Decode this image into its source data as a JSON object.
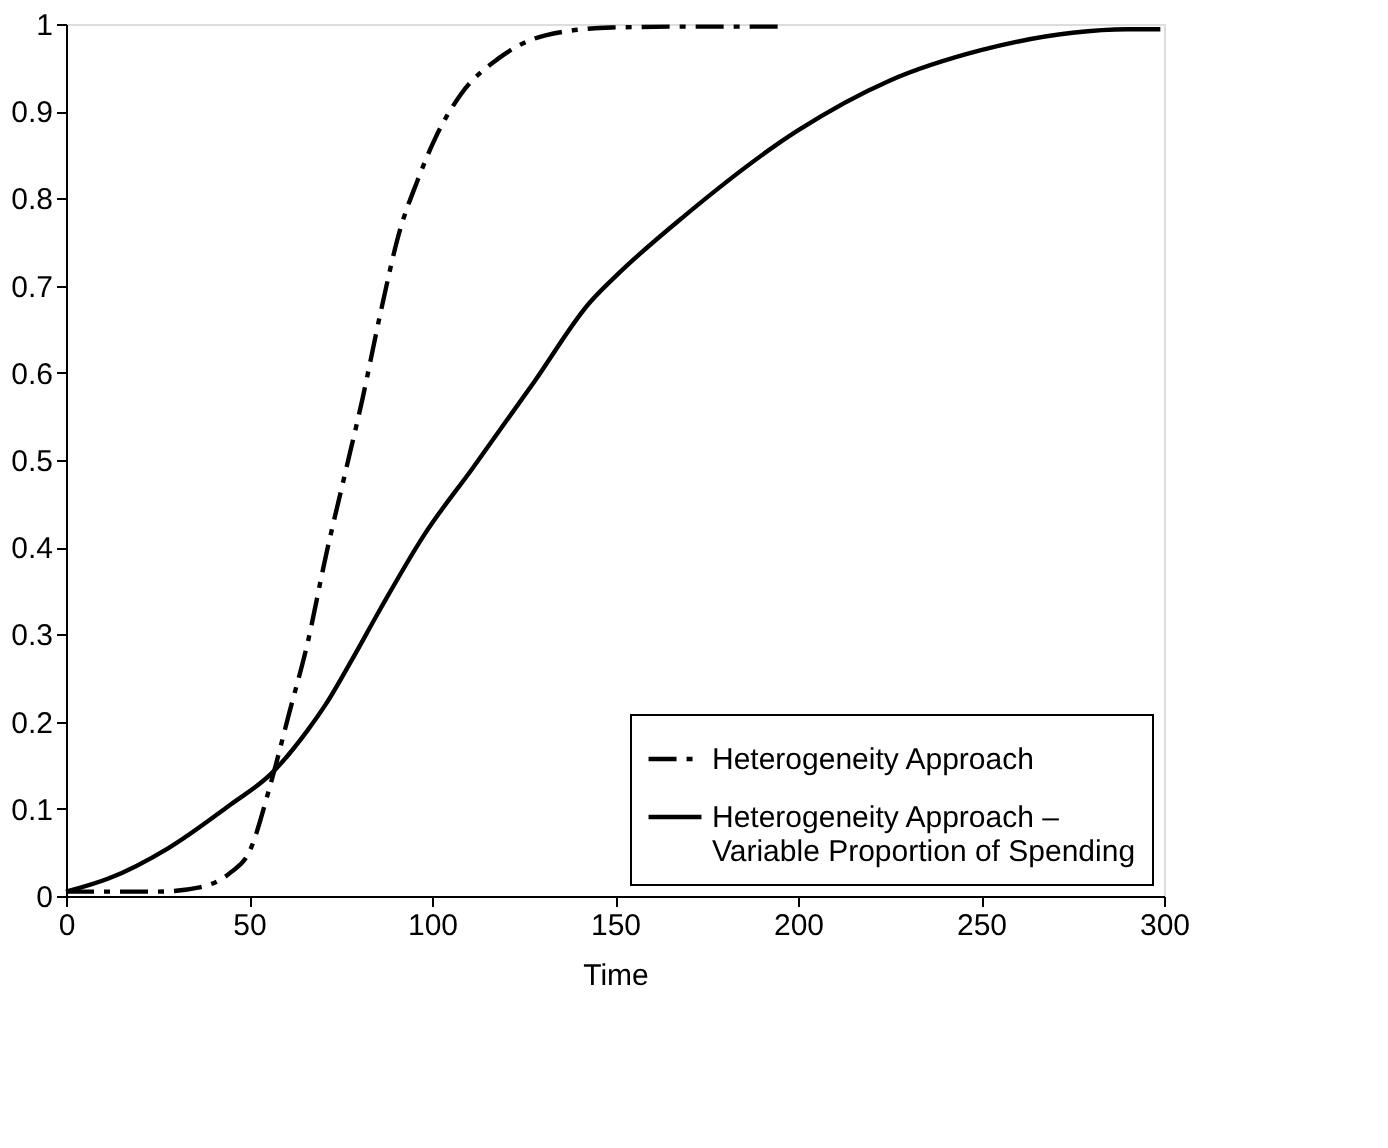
{
  "chart_data": {
    "type": "line",
    "xlabel": "Time",
    "xlim": [
      0,
      300
    ],
    "ylim": [
      0,
      1
    ],
    "xticks": [
      0,
      50,
      100,
      150,
      200,
      250,
      300
    ],
    "yticks": [
      0,
      0.1,
      0.2,
      0.3,
      0.4,
      0.5,
      0.6,
      0.7,
      0.8,
      0.9,
      1
    ],
    "grid": false,
    "legend": "bottom right",
    "marker": "none",
    "series": [
      {
        "name": "Heterogeneity Approach",
        "color": "#000000",
        "line_style": "dashdot",
        "x": [
          0,
          25,
          36.5,
          45,
          50,
          56,
          61,
          66,
          71,
          76,
          81,
          86,
          91,
          96,
          101,
          108,
          118,
          131,
          149,
          170,
          195
        ],
        "values": [
          0.005,
          0.005,
          0.01,
          0.027,
          0.05,
          0.13,
          0.21,
          0.29,
          0.39,
          0.48,
          0.57,
          0.67,
          0.76,
          0.82,
          0.87,
          0.92,
          0.96,
          0.987,
          0.996,
          0.997,
          0.997
        ]
      },
      {
        "name": "Heterogeneity Approach – Variable Proportion of Spending",
        "color": "#000000",
        "line_style": "solid",
        "x": [
          0,
          11.6,
          28,
          45,
          56,
          66,
          71,
          78,
          86,
          98,
          111,
          128,
          143,
          150,
          169,
          200,
          225,
          250,
          275,
          290,
          299
        ],
        "values": [
          0.005,
          0.02,
          0.055,
          0.105,
          0.14,
          0.19,
          0.22,
          0.27,
          0.33,
          0.415,
          0.49,
          0.59,
          0.68,
          0.71,
          0.78,
          0.878,
          0.935,
          0.97,
          0.99,
          0.994,
          0.994
        ]
      }
    ]
  }
}
